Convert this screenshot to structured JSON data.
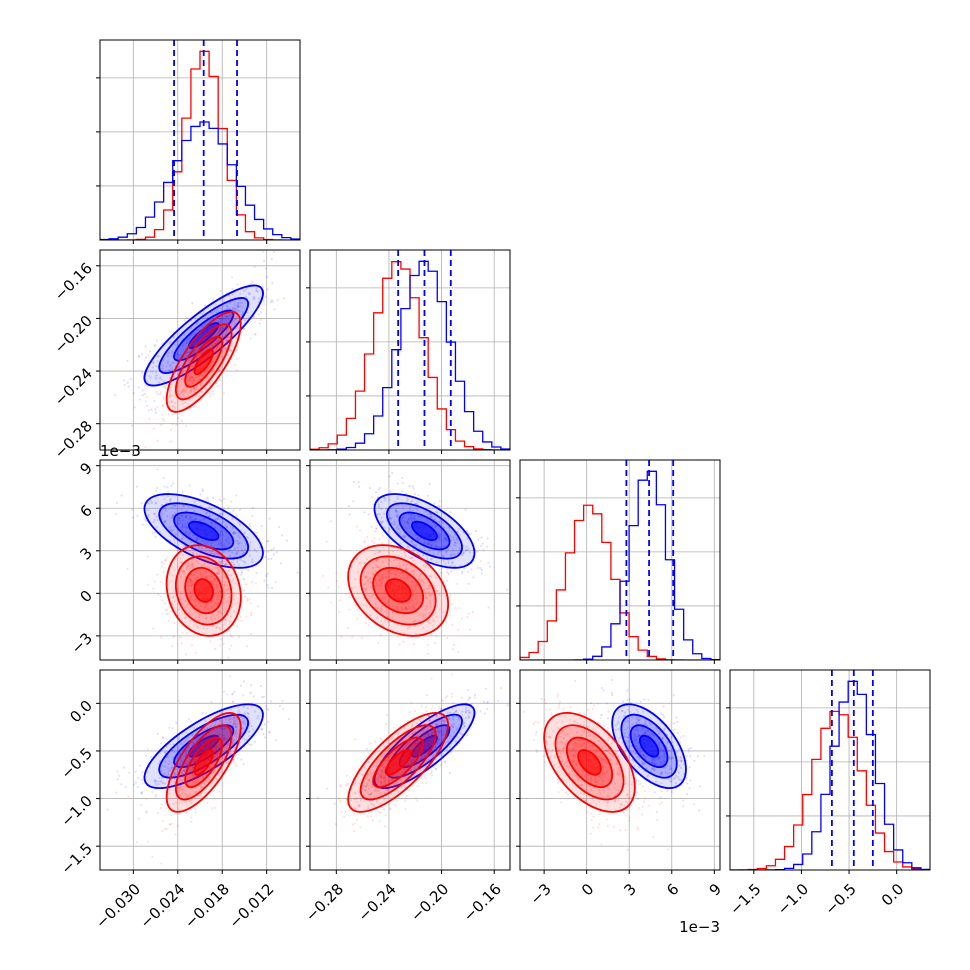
{
  "chart_data": {
    "type": "corner",
    "grid": true,
    "colors": {
      "series_a": "#0000ff",
      "series_b": "#ff0000"
    },
    "parameters": [
      {
        "range": [
          -0.0345,
          -0.0075
        ],
        "ticks": [
          -0.03,
          -0.024,
          -0.018,
          -0.012
        ],
        "tick_labels": [
          "−0.030",
          "−0.024",
          "−0.018",
          "−0.012"
        ],
        "offset_label": ""
      },
      {
        "range": [
          -0.3,
          -0.148
        ],
        "ticks": [
          -0.28,
          -0.24,
          -0.2,
          -0.16
        ],
        "tick_labels": [
          "−0.28",
          "−0.24",
          "−0.20",
          "−0.16"
        ],
        "offset_label": ""
      },
      {
        "range": [
          -4.7,
          9.4
        ],
        "ticks": [
          -3,
          0,
          3,
          6,
          9
        ],
        "tick_labels": [
          "−3",
          "0",
          "3",
          "6",
          "9"
        ],
        "offset_label": "1e−3"
      },
      {
        "range": [
          -1.75,
          0.35
        ],
        "ticks": [
          -1.5,
          -1.0,
          -0.5,
          0.0
        ],
        "tick_labels": [
          "−1.5",
          "−1.0",
          "−0.5",
          "0.0"
        ],
        "offset_label": ""
      }
    ],
    "series": [
      {
        "color": "#0000ff",
        "means": [
          -0.0205,
          -0.213,
          4.4,
          -0.45
        ],
        "sigmas": [
          0.004,
          0.019,
          1.3,
          0.22
        ],
        "correlations": {
          "0-1": 0.85,
          "0-2": -0.6,
          "1-2": -0.6,
          "0-3": 0.75,
          "1-3": 0.8,
          "2-3": -0.55
        },
        "quantiles": [
          [
            -0.0245,
            -0.0205,
            -0.016
          ],
          [
            -0.233,
            -0.213,
            -0.193
          ],
          [
            2.8,
            4.4,
            6.1
          ],
          [
            -0.68,
            -0.45,
            -0.25
          ]
        ]
      },
      {
        "color": "#ff0000",
        "means": [
          -0.0205,
          -0.233,
          0.2,
          -0.62
        ],
        "sigmas": [
          0.0025,
          0.019,
          1.6,
          0.26
        ],
        "correlations": {
          "0-1": 0.75,
          "0-2": -0.15,
          "1-2": -0.3,
          "0-3": 0.7,
          "1-3": 0.75,
          "2-3": -0.5
        }
      }
    ]
  }
}
